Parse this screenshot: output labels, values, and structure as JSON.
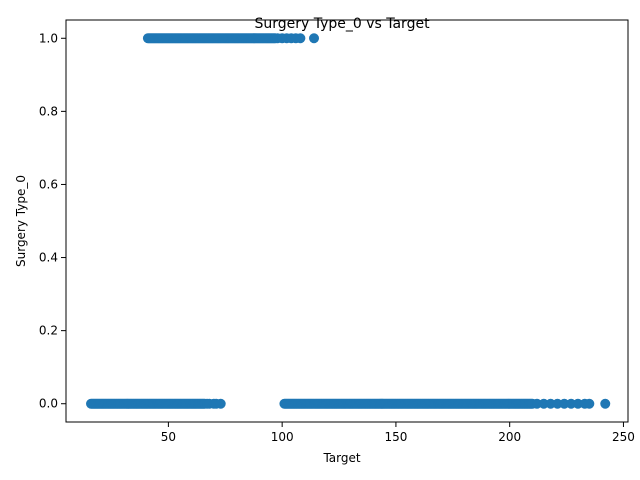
{
  "chart_data": {
    "type": "scatter",
    "title": "Surgery Type_0 vs Target",
    "xlabel": "Target",
    "ylabel": "Surgery Type_0",
    "xlim": [
      5,
      252
    ],
    "ylim": [
      -0.05,
      1.05
    ],
    "xticks": [
      50,
      100,
      150,
      200,
      250
    ],
    "xtick_labels": [
      "50",
      "100",
      "150",
      "200",
      "250"
    ],
    "yticks": [
      0.0,
      0.2,
      0.4,
      0.6,
      0.8,
      1.0
    ],
    "ytick_labels": [
      "0.0",
      "0.2",
      "0.4",
      "0.6",
      "0.8",
      "1.0"
    ],
    "grid": false,
    "marker_color": "#1f77b4",
    "series": [
      {
        "clusters": [
          {
            "y": 1,
            "x_dense": [
              41,
              97
            ],
            "x_sparse": [
              98,
              100,
              102,
              104,
              106,
              108,
              114
            ]
          },
          {
            "y": 0,
            "x_dense": [
              16,
              66
            ],
            "x_sparse": [
              67,
              68,
              70,
              71,
              73
            ]
          },
          {
            "y": 0,
            "x_dense": [
              101,
              210
            ],
            "x_sparse": [
              212,
              215,
              218,
              221,
              224,
              227,
              230,
              233,
              235,
              242
            ]
          }
        ]
      }
    ]
  }
}
